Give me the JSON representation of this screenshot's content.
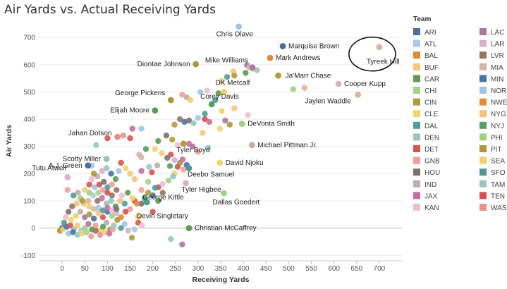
{
  "chart_data": {
    "type": "scatter",
    "title": "Air Yards vs. Actual Receiving Yards",
    "xlabel": "Receiving Yards",
    "ylabel": "Air Yards",
    "xlim": [
      -50,
      750
    ],
    "ylim": [
      -120,
      760
    ],
    "xticks": [
      "0",
      "50",
      "100",
      "150",
      "200",
      "250",
      "300",
      "350",
      "400",
      "450",
      "500",
      "550",
      "600",
      "650",
      "700"
    ],
    "yticks": [
      "-100",
      "0",
      "100",
      "200",
      "300",
      "400",
      "500",
      "600",
      "700"
    ],
    "grid": "horizontal",
    "legend_title": "Team",
    "legend_position": "right",
    "teams": [
      {
        "name": "ARI",
        "color": "#4e6c9c"
      },
      {
        "name": "ATL",
        "color": "#a7cbe8"
      },
      {
        "name": "BAL",
        "color": "#e08a3a"
      },
      {
        "name": "BUF",
        "color": "#f5c875"
      },
      {
        "name": "CAR",
        "color": "#5e9a51"
      },
      {
        "name": "CHI",
        "color": "#a6d18b"
      },
      {
        "name": "CIN",
        "color": "#b39a3a"
      },
      {
        "name": "CLE",
        "color": "#f2d56a"
      },
      {
        "name": "DAL",
        "color": "#4f9d98"
      },
      {
        "name": "DEN",
        "color": "#97c6c0"
      },
      {
        "name": "DET",
        "color": "#d9534f"
      },
      {
        "name": "GNB",
        "color": "#f19d9a"
      },
      {
        "name": "HOU",
        "color": "#7b706c"
      },
      {
        "name": "IND",
        "color": "#bcaea8"
      },
      {
        "name": "JAX",
        "color": "#c56f9b"
      },
      {
        "name": "KAN",
        "color": "#f0bcd3"
      },
      {
        "name": "LAC",
        "color": "#aa789f"
      },
      {
        "name": "LAR",
        "color": "#d8b1cc"
      },
      {
        "name": "LVR",
        "color": "#967462"
      },
      {
        "name": "MIA",
        "color": "#d7b59f"
      },
      {
        "name": "MIN",
        "color": "#4c72a6"
      },
      {
        "name": "NOR",
        "color": "#9ec5e4"
      },
      {
        "name": "NWE",
        "color": "#e48a30"
      },
      {
        "name": "NYG",
        "color": "#f5c37b"
      },
      {
        "name": "NYJ",
        "color": "#57a05a"
      },
      {
        "name": "PHI",
        "color": "#9fd37f"
      },
      {
        "name": "PIT",
        "color": "#b0963b"
      },
      {
        "name": "SEA",
        "color": "#f0d26b"
      },
      {
        "name": "SFO",
        "color": "#4d9a95"
      },
      {
        "name": "TAM",
        "color": "#9ac4bf"
      },
      {
        "name": "TEN",
        "color": "#d6504c"
      },
      {
        "name": "WAS",
        "color": "#ef8f8c"
      }
    ],
    "labeled_points": [
      {
        "name": "Chris Olave",
        "x": 390,
        "y": 740,
        "team": "NOR",
        "label": "Chris Olave"
      },
      {
        "name": "Marquise Brown",
        "x": 487,
        "y": 668,
        "team": "ARI",
        "label": "Marquise Brown"
      },
      {
        "name": "Mark Andrews",
        "x": 459,
        "y": 625,
        "team": "BAL",
        "label": "Mark Andrews"
      },
      {
        "name": "Tyreek Hill",
        "x": 700,
        "y": 665,
        "team": "MIA",
        "label": "Tyreek Hill",
        "highlighted": true
      },
      {
        "name": "Mike Williams",
        "x": 420,
        "y": 590,
        "team": "LAC",
        "label": "Mike Williams"
      },
      {
        "name": "Diontae Johnson",
        "x": 295,
        "y": 602,
        "team": "PIT",
        "label": "Diontae Johnson"
      },
      {
        "name": "Ja'Marr Chase",
        "x": 477,
        "y": 560,
        "team": "CIN",
        "label": "Ja'Marr Chase"
      },
      {
        "name": "DK Metcalf",
        "x": 357,
        "y": 500,
        "team": "SEA",
        "label": "DK Metcalf"
      },
      {
        "name": "Cooper Kupp",
        "x": 610,
        "y": 530,
        "team": "LAR",
        "label": "Cooper Kupp"
      },
      {
        "name": "Jaylen Waddle",
        "x": 653,
        "y": 490,
        "team": "MIA",
        "label": "Jaylen Waddle"
      },
      {
        "name": "George Pickens",
        "x": 240,
        "y": 470,
        "team": "PIT",
        "label": "George Pickens"
      },
      {
        "name": "Corey Davis",
        "x": 330,
        "y": 455,
        "team": "NYJ",
        "label": "Corey Davis"
      },
      {
        "name": "Elijah Moore",
        "x": 205,
        "y": 432,
        "team": "NYJ",
        "label": "Elijah Moore"
      },
      {
        "name": "DeVonta Smith",
        "x": 397,
        "y": 383,
        "team": "PHI",
        "label": "DeVonta Smith"
      },
      {
        "name": "Jahan Dotson",
        "x": 122,
        "y": 335,
        "team": "WAS",
        "label": "Jahan Dotson"
      },
      {
        "name": "Tyler Boyd",
        "x": 268,
        "y": 310,
        "team": "CIN",
        "label": "Tyler Boyd"
      },
      {
        "name": "Michael Pittman Jr.",
        "x": 419,
        "y": 305,
        "team": "IND",
        "label": "Michael Pittman Jr."
      },
      {
        "name": "Scotty Miller",
        "x": 98,
        "y": 254,
        "team": "TAM",
        "label": "Scotty Miller"
      },
      {
        "name": "David Njoku",
        "x": 348,
        "y": 240,
        "team": "CLE",
        "label": "David Njoku"
      },
      {
        "name": "A.J. Green",
        "x": 57,
        "y": 230,
        "team": "ARI",
        "label": "A.J. Green"
      },
      {
        "name": "Deebo Samuel",
        "x": 280,
        "y": 220,
        "team": "SFO",
        "label": "Deebo Samuel"
      },
      {
        "name": "Tutu Atwell",
        "x": 12,
        "y": 187,
        "team": "LAR",
        "label": "Tutu Atwell"
      },
      {
        "name": "Tyler Higbee",
        "x": 273,
        "y": 165,
        "team": "LAR",
        "label": "Tyler Higbee"
      },
      {
        "name": "Dallas Goedert",
        "x": 357,
        "y": 128,
        "team": "PHI",
        "label": "Dallas Goedert"
      },
      {
        "name": "George Kittle",
        "x": 187,
        "y": 95,
        "team": "SFO",
        "label": "George Kittle"
      },
      {
        "name": "Devin Singletary",
        "x": 168,
        "y": 42,
        "team": "BUF",
        "label": "Devin Singletary"
      },
      {
        "name": "Christian McCaffrey",
        "x": 280,
        "y": 0,
        "team": "CAR",
        "label": "Christian McCaffrey"
      }
    ],
    "other_points": [
      [
        378,
        575,
        "NYG"
      ],
      [
        408,
        598,
        "LAC"
      ],
      [
        413,
        590,
        "LAR"
      ],
      [
        405,
        570,
        "CAR"
      ],
      [
        420,
        585,
        "CLE"
      ],
      [
        430,
        580,
        "TAM"
      ],
      [
        352,
        540,
        "BUF"
      ],
      [
        364,
        555,
        "DAL"
      ],
      [
        380,
        560,
        "CIN"
      ],
      [
        345,
        495,
        "CAR"
      ],
      [
        338,
        470,
        "DAL"
      ],
      [
        510,
        510,
        "PHI"
      ],
      [
        535,
        515,
        "MIA"
      ],
      [
        265,
        490,
        "GNB"
      ],
      [
        275,
        480,
        "IND"
      ],
      [
        283,
        470,
        "SEA"
      ],
      [
        305,
        500,
        "NOR"
      ],
      [
        320,
        505,
        "KAN"
      ],
      [
        380,
        440,
        "NYG"
      ],
      [
        352,
        430,
        "SEA"
      ],
      [
        315,
        420,
        "DAL"
      ],
      [
        260,
        400,
        "LVR"
      ],
      [
        248,
        380,
        "CIN"
      ],
      [
        270,
        390,
        "MIN"
      ],
      [
        280,
        395,
        "HOU"
      ],
      [
        290,
        385,
        "DEN"
      ],
      [
        300,
        405,
        "NOR"
      ],
      [
        315,
        400,
        "TEN"
      ],
      [
        325,
        390,
        "JAX"
      ],
      [
        360,
        395,
        "LAC"
      ],
      [
        370,
        380,
        "PIT"
      ],
      [
        348,
        365,
        "SEA"
      ],
      [
        310,
        350,
        "NYG"
      ],
      [
        230,
        340,
        "HOU"
      ],
      [
        243,
        325,
        "CIN"
      ],
      [
        212,
        320,
        "NYJ"
      ],
      [
        255,
        305,
        "KAN"
      ],
      [
        280,
        310,
        "JAX"
      ],
      [
        288,
        300,
        "LAC"
      ],
      [
        300,
        280,
        "GNB"
      ],
      [
        322,
        295,
        "TAM"
      ],
      [
        410,
        415,
        "KAN"
      ],
      [
        175,
        365,
        "NOR"
      ],
      [
        155,
        365,
        "JAX"
      ],
      [
        135,
        340,
        "WAS"
      ],
      [
        150,
        330,
        "DET"
      ],
      [
        185,
        290,
        "NYJ"
      ],
      [
        170,
        270,
        "LAR"
      ],
      [
        175,
        260,
        "MIA"
      ],
      [
        205,
        290,
        "CLE"
      ],
      [
        220,
        275,
        "BUF"
      ],
      [
        240,
        270,
        "TEN"
      ],
      [
        232,
        258,
        "HOU"
      ],
      [
        248,
        250,
        "LAR"
      ],
      [
        260,
        240,
        "PIT"
      ],
      [
        266,
        252,
        "JAX"
      ],
      [
        275,
        232,
        "MIN"
      ],
      [
        255,
        225,
        "DET"
      ],
      [
        238,
        228,
        "NYJ"
      ],
      [
        268,
        215,
        "GNB"
      ],
      [
        248,
        200,
        "SEA"
      ],
      [
        245,
        190,
        "DEN"
      ],
      [
        235,
        175,
        "PHI"
      ],
      [
        222,
        162,
        "KAN"
      ],
      [
        212,
        150,
        "TEN"
      ],
      [
        205,
        148,
        "DAL"
      ],
      [
        222,
        130,
        "LVR"
      ],
      [
        200,
        120,
        "MIN"
      ],
      [
        212,
        100,
        "CAR"
      ],
      [
        200,
        60,
        "TEN"
      ],
      [
        175,
        90,
        "HOU"
      ],
      [
        160,
        100,
        "DET"
      ],
      [
        182,
        110,
        "NYJ"
      ],
      [
        190,
        130,
        "CIN"
      ],
      [
        175,
        140,
        "GNB"
      ],
      [
        190,
        170,
        "CHI"
      ],
      [
        198,
        205,
        "DET"
      ],
      [
        210,
        230,
        "IND"
      ],
      [
        192,
        225,
        "NOR"
      ],
      [
        175,
        210,
        "JAX"
      ],
      [
        160,
        180,
        "NYG"
      ],
      [
        150,
        200,
        "BUF"
      ],
      [
        140,
        220,
        "CLE"
      ],
      [
        130,
        240,
        "DET"
      ],
      [
        125,
        210,
        "NOR"
      ],
      [
        118,
        180,
        "CAR"
      ],
      [
        108,
        200,
        "MIN"
      ],
      [
        98,
        220,
        "DEN"
      ],
      [
        88,
        210,
        "LAR"
      ],
      [
        78,
        190,
        "IND"
      ],
      [
        70,
        200,
        "PIT"
      ],
      [
        65,
        180,
        "KAN"
      ],
      [
        60,
        160,
        "DET"
      ],
      [
        72,
        150,
        "NOR"
      ],
      [
        82,
        160,
        "TEN"
      ],
      [
        92,
        170,
        "HOU"
      ],
      [
        100,
        150,
        "SFO"
      ],
      [
        110,
        160,
        "GNB"
      ],
      [
        120,
        140,
        "LVR"
      ],
      [
        132,
        120,
        "KAN"
      ],
      [
        145,
        130,
        "NYJ"
      ],
      [
        155,
        110,
        "SEA"
      ],
      [
        165,
        90,
        "BAL"
      ],
      [
        150,
        70,
        "GNB"
      ],
      [
        138,
        90,
        "DAL"
      ],
      [
        128,
        100,
        "NYG"
      ],
      [
        118,
        80,
        "CAR"
      ],
      [
        108,
        100,
        "DEN"
      ],
      [
        98,
        90,
        "TAM"
      ],
      [
        88,
        110,
        "JAX"
      ],
      [
        78,
        100,
        "LVR"
      ],
      [
        68,
        120,
        "ATL"
      ],
      [
        58,
        100,
        "MIA"
      ],
      [
        48,
        90,
        "BUF"
      ],
      [
        40,
        110,
        "CHI"
      ],
      [
        32,
        90,
        "NYG"
      ],
      [
        22,
        80,
        "LVR"
      ],
      [
        14,
        60,
        "HOU"
      ],
      [
        8,
        40,
        "KAN"
      ],
      [
        4,
        20,
        "DAL"
      ],
      [
        0,
        0,
        "ARI"
      ],
      [
        -5,
        -10,
        "PIT"
      ],
      [
        2,
        -5,
        "SEA"
      ],
      [
        10,
        5,
        "MIN"
      ],
      [
        18,
        10,
        "TEN"
      ],
      [
        26,
        -5,
        "DEN"
      ],
      [
        34,
        10,
        "BUF"
      ],
      [
        42,
        -10,
        "NOR"
      ],
      [
        50,
        0,
        "PHI"
      ],
      [
        58,
        15,
        "LAC"
      ],
      [
        66,
        -5,
        "CAR"
      ],
      [
        74,
        10,
        "GNB"
      ],
      [
        82,
        -10,
        "SEA"
      ],
      [
        90,
        5,
        "NYJ"
      ],
      [
        98,
        20,
        "IND"
      ],
      [
        106,
        -5,
        "CIN"
      ],
      [
        114,
        10,
        "TAM"
      ],
      [
        122,
        30,
        "PIT"
      ],
      [
        130,
        0,
        "DAL"
      ],
      [
        138,
        15,
        "NOR"
      ],
      [
        146,
        -10,
        "LAR"
      ],
      [
        154,
        -35,
        "CIN"
      ],
      [
        160,
        -5,
        "ATL"
      ],
      [
        168,
        20,
        "DET"
      ],
      [
        176,
        10,
        "KAN"
      ],
      [
        14,
        -20,
        "NOR"
      ],
      [
        24,
        -15,
        "MIN"
      ],
      [
        34,
        -25,
        "DEN"
      ],
      [
        44,
        -20,
        "CLE"
      ],
      [
        54,
        -15,
        "CHI"
      ],
      [
        64,
        -30,
        "GNB"
      ],
      [
        74,
        -10,
        "LVR"
      ],
      [
        84,
        -25,
        "WAS"
      ],
      [
        94,
        -15,
        "BUF"
      ],
      [
        104,
        -20,
        "JAX"
      ],
      [
        112,
        -5,
        "MIA"
      ],
      [
        20,
        30,
        "CLE"
      ],
      [
        30,
        45,
        "SEA"
      ],
      [
        40,
        60,
        "IND"
      ],
      [
        50,
        40,
        "LAC"
      ],
      [
        60,
        50,
        "PIT"
      ],
      [
        70,
        35,
        "ARI"
      ],
      [
        80,
        55,
        "NYG"
      ],
      [
        90,
        40,
        "DET"
      ],
      [
        100,
        60,
        "MIN"
      ],
      [
        110,
        45,
        "PHI"
      ],
      [
        120,
        55,
        "LAR"
      ],
      [
        130,
        40,
        "BAL"
      ],
      [
        140,
        60,
        "TEN"
      ],
      [
        60,
        80,
        "BUF"
      ],
      [
        70,
        70,
        "MIA"
      ],
      [
        80,
        75,
        "NOR"
      ],
      [
        90,
        65,
        "DAL"
      ],
      [
        100,
        75,
        "JAX"
      ],
      [
        110,
        65,
        "KAN"
      ],
      [
        120,
        70,
        "HOU"
      ],
      [
        12,
        140,
        "GNB"
      ],
      [
        25,
        120,
        "SFO"
      ],
      [
        35,
        130,
        "IND"
      ],
      [
        45,
        100,
        "CIN"
      ],
      [
        80,
        130,
        "CHI"
      ],
      [
        90,
        140,
        "GNB"
      ],
      [
        100,
        130,
        "TEN"
      ],
      [
        110,
        120,
        "LVR"
      ],
      [
        60,
        130,
        "PHI"
      ],
      [
        50,
        140,
        "SEA"
      ],
      [
        65,
        230,
        "NOR"
      ],
      [
        75,
        305,
        "DEN"
      ],
      [
        100,
        330,
        "DET"
      ],
      [
        240,
        -40,
        "TAM"
      ],
      [
        265,
        -60,
        "LAC"
      ]
    ]
  }
}
